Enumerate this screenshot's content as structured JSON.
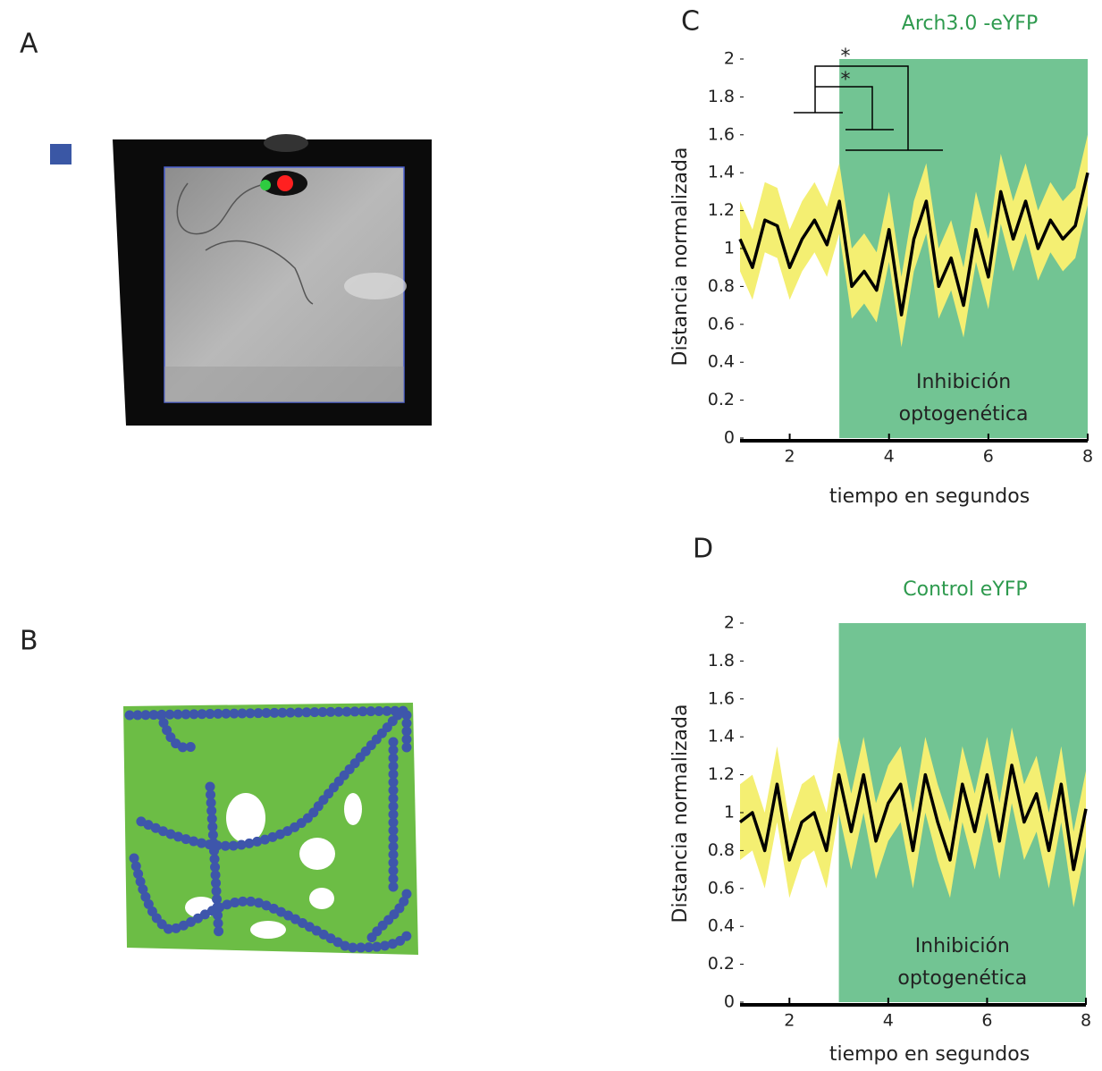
{
  "panel_labels": [
    "A",
    "B"
  ],
  "chart_data": [
    {
      "type": "line",
      "panel": "C",
      "title": "Arch3.0 -eYFP",
      "xlabel": "tiempo en segundos",
      "ylabel": "Distancia normalizada",
      "x": [
        1,
        1.25,
        1.5,
        1.75,
        2,
        2.25,
        2.5,
        2.75,
        3,
        3.25,
        3.5,
        3.75,
        4,
        4.25,
        4.5,
        4.75,
        5,
        5.25,
        5.5,
        5.75,
        6,
        6.25,
        6.5,
        6.75,
        7,
        7.25,
        7.5,
        7.75,
        8
      ],
      "values": [
        1.05,
        0.9,
        1.15,
        1.12,
        0.9,
        1.05,
        1.15,
        1.02,
        1.25,
        0.8,
        0.88,
        0.78,
        1.1,
        0.65,
        1.05,
        1.25,
        0.8,
        0.95,
        0.7,
        1.1,
        0.85,
        1.3,
        1.05,
        1.25,
        1.0,
        1.15,
        1.05,
        1.12,
        1.4
      ],
      "band_lower": [
        0.88,
        0.73,
        0.98,
        0.95,
        0.73,
        0.88,
        0.98,
        0.85,
        1.08,
        0.63,
        0.71,
        0.61,
        0.93,
        0.48,
        0.88,
        1.08,
        0.63,
        0.78,
        0.53,
        0.93,
        0.68,
        1.13,
        0.88,
        1.08,
        0.83,
        0.98,
        0.88,
        0.95,
        1.23
      ],
      "band_upper": [
        1.25,
        1.1,
        1.35,
        1.32,
        1.1,
        1.25,
        1.35,
        1.22,
        1.45,
        1.0,
        1.08,
        0.98,
        1.3,
        0.85,
        1.25,
        1.45,
        1.0,
        1.15,
        0.9,
        1.3,
        1.05,
        1.5,
        1.25,
        1.45,
        1.2,
        1.35,
        1.25,
        1.32,
        1.6
      ],
      "color": "#000000",
      "band_color": "#f4ef72",
      "shade": {
        "xlim": [
          3,
          8
        ],
        "color": "#72c493"
      },
      "shade_label": [
        "Inhibición",
        "optogenética"
      ],
      "annotations": [
        "*",
        "*"
      ],
      "xlim": [
        1,
        8
      ],
      "ylim": [
        0,
        2
      ],
      "xticks": [
        2,
        4,
        6,
        8
      ],
      "yticks": [
        0,
        0.2,
        0.4,
        0.6,
        0.8,
        1,
        1.2,
        1.4,
        1.6,
        1.8,
        2
      ]
    },
    {
      "type": "line",
      "panel": "D",
      "title": "Control eYFP",
      "xlabel": "tiempo en segundos",
      "ylabel": "Distancia normalizada",
      "x": [
        1,
        1.25,
        1.5,
        1.75,
        2,
        2.25,
        2.5,
        2.75,
        3,
        3.25,
        3.5,
        3.75,
        4,
        4.25,
        4.5,
        4.75,
        5,
        5.25,
        5.5,
        5.75,
        6,
        6.25,
        6.5,
        6.75,
        7,
        7.25,
        7.5,
        7.75,
        8
      ],
      "values": [
        0.95,
        1.0,
        0.8,
        1.15,
        0.75,
        0.95,
        1.0,
        0.8,
        1.2,
        0.9,
        1.2,
        0.85,
        1.05,
        1.15,
        0.8,
        1.2,
        0.95,
        0.75,
        1.15,
        0.9,
        1.2,
        0.85,
        1.25,
        0.95,
        1.1,
        0.8,
        1.15,
        0.7,
        1.02
      ],
      "band_lower": [
        0.75,
        0.8,
        0.6,
        0.95,
        0.55,
        0.75,
        0.8,
        0.6,
        1.0,
        0.7,
        1.0,
        0.65,
        0.85,
        0.95,
        0.6,
        1.0,
        0.75,
        0.55,
        0.95,
        0.7,
        1.0,
        0.65,
        1.05,
        0.75,
        0.9,
        0.6,
        0.95,
        0.5,
        0.82
      ],
      "band_upper": [
        1.15,
        1.2,
        1.0,
        1.35,
        0.95,
        1.15,
        1.2,
        1.0,
        1.4,
        1.1,
        1.4,
        1.05,
        1.25,
        1.35,
        1.0,
        1.4,
        1.15,
        0.95,
        1.35,
        1.1,
        1.4,
        1.05,
        1.45,
        1.15,
        1.3,
        1.0,
        1.35,
        0.9,
        1.22
      ],
      "color": "#000000",
      "band_color": "#f4ef72",
      "shade": {
        "xlim": [
          3,
          8
        ],
        "color": "#72c493"
      },
      "shade_label": [
        "Inhibición",
        "optogenética"
      ],
      "xlim": [
        1,
        8
      ],
      "ylim": [
        0,
        2
      ],
      "xticks": [
        2,
        4,
        6,
        8
      ],
      "yticks": [
        0,
        0.2,
        0.4,
        0.6,
        0.8,
        1,
        1.2,
        1.4,
        1.6,
        1.8,
        2
      ]
    }
  ]
}
